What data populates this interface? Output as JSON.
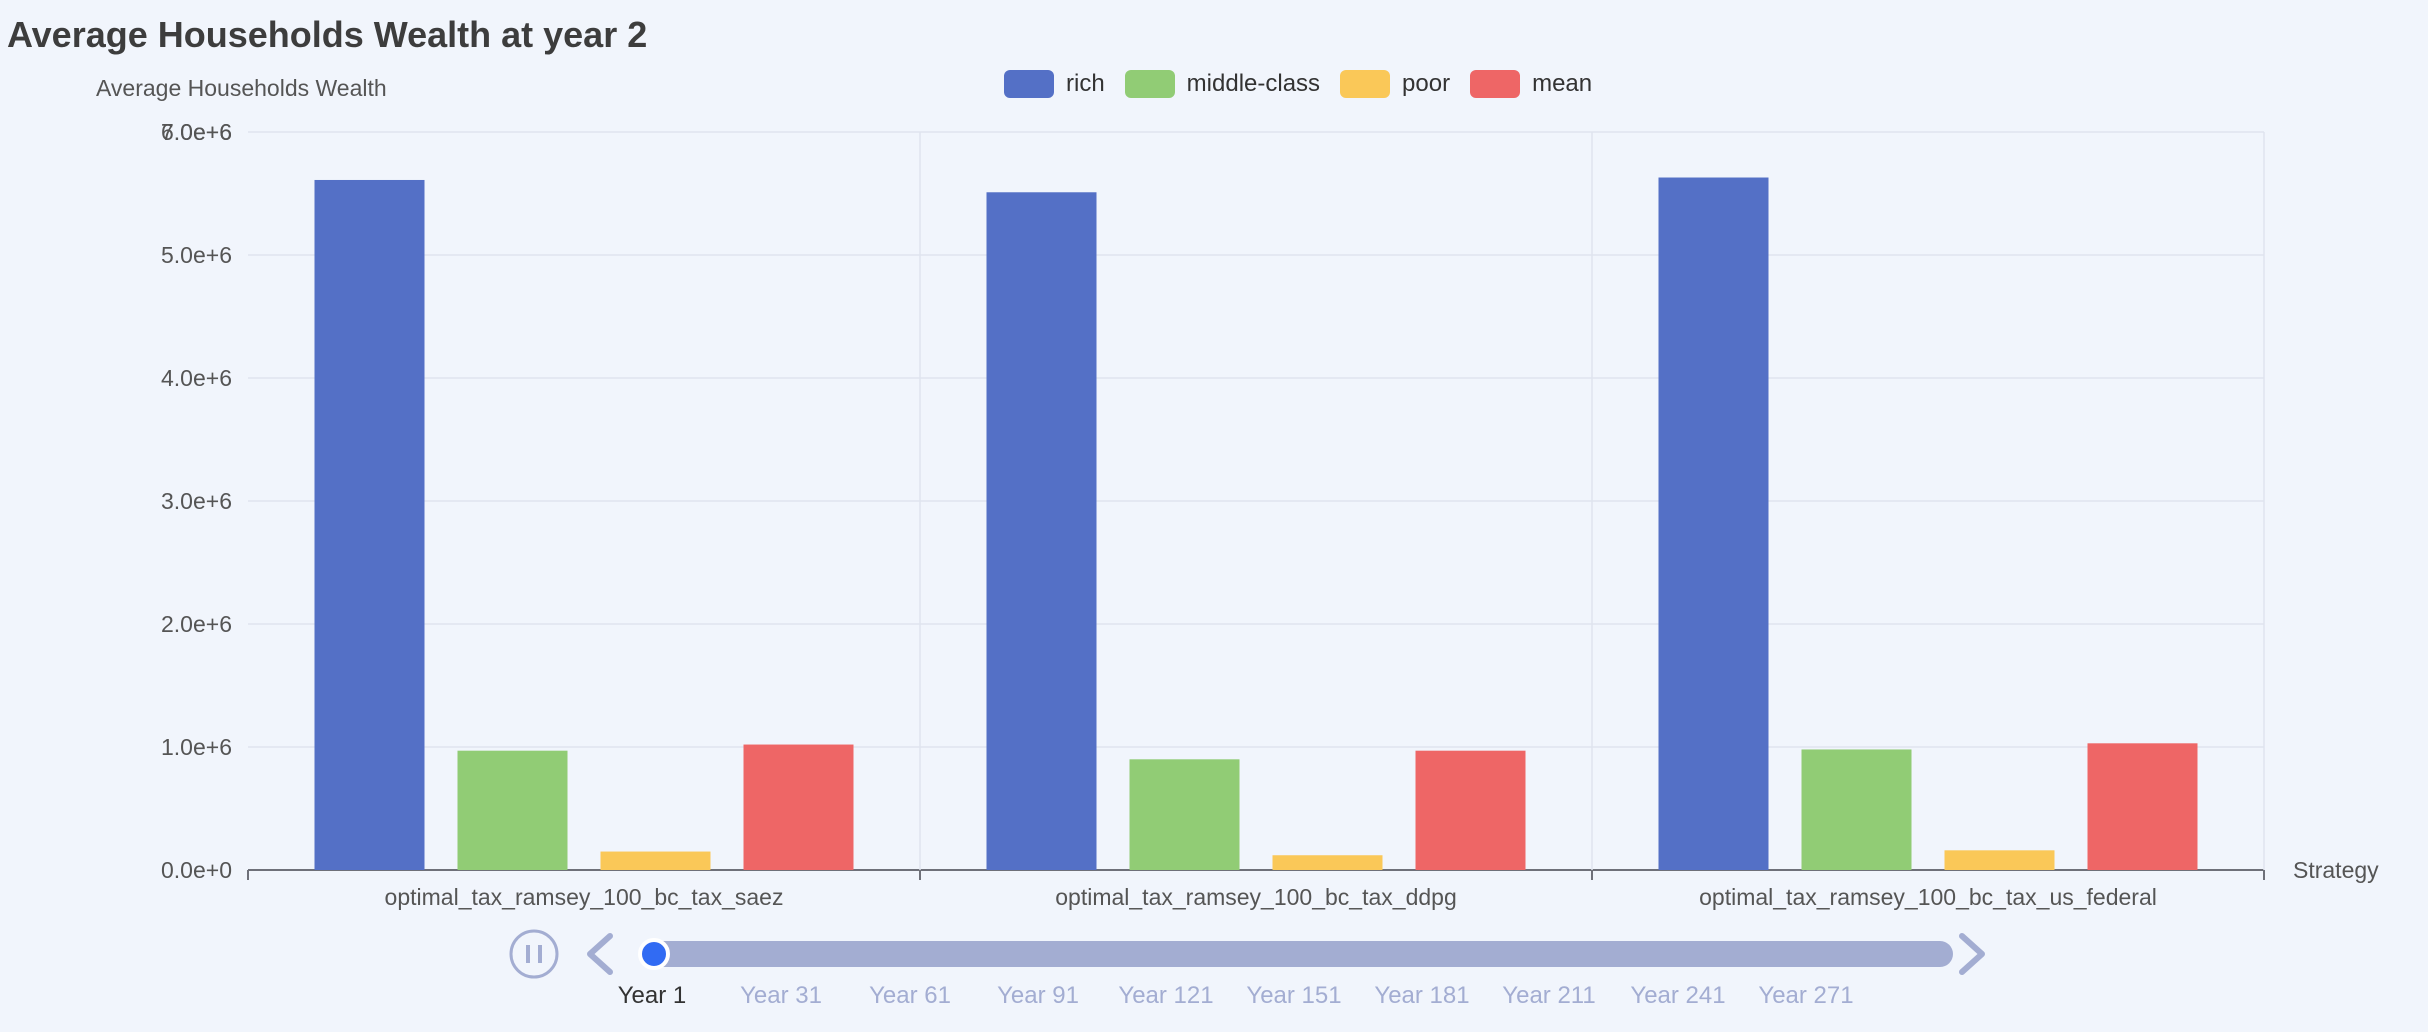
{
  "title": "Average Households Wealth at year 2",
  "colors": {
    "rich": "#5470c6",
    "middle_class": "#91cc75",
    "poor": "#fac858",
    "mean": "#ee6666"
  },
  "timeline": {
    "labels": [
      "Year 1",
      "Year 31",
      "Year 61",
      "Year 91",
      "Year 121",
      "Year 151",
      "Year 181",
      "Year 211",
      "Year 241",
      "Year 271"
    ],
    "active_index": 0,
    "progress": 0.0,
    "play_icon": "pause-icon",
    "prev_icon": "chevron-left-icon",
    "next_icon": "chevron-right-icon"
  },
  "chart_data": {
    "type": "bar",
    "title": "Average Households Wealth at year 2",
    "xlabel": "Strategy",
    "ylabel": "Average Households Wealth",
    "categories": [
      "optimal_tax_ramsey_100_bc_tax_saez",
      "optimal_tax_ramsey_100_bc_tax_ddpg",
      "optimal_tax_ramsey_100_bc_tax_us_federal"
    ],
    "series": [
      {
        "name": "rich",
        "values": [
          5610000,
          5510000,
          5630000
        ]
      },
      {
        "name": "middle-class",
        "values": [
          970000,
          900000,
          980000
        ]
      },
      {
        "name": "poor",
        "values": [
          150000,
          120000,
          160000
        ]
      },
      {
        "name": "mean",
        "values": [
          1020000,
          970000,
          1030000
        ]
      }
    ],
    "ylim": [
      0,
      6000000
    ],
    "yticks": [
      "0.0e+0",
      "1.0e+6",
      "2.0e+6",
      "3.0e+6",
      "4.0e+6",
      "5.0e+6",
      "6.0e+6",
      "7.0e+6"
    ],
    "legend_position": "top-center",
    "grid": true
  }
}
